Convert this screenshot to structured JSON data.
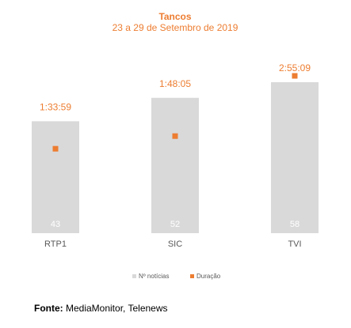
{
  "chart_data": {
    "type": "bar",
    "title": "Tancos",
    "subtitle": "23 a 29 de Setembro de 2019",
    "categories": [
      "RTP1",
      "SIC",
      "TVI"
    ],
    "series": [
      {
        "name": "Nº notícias",
        "kind": "bar",
        "values": [
          43,
          52,
          58
        ],
        "labels": [
          "43",
          "52",
          "58"
        ],
        "color": "#d9d9d9"
      },
      {
        "name": "Duração",
        "kind": "marker",
        "values": [
          "1:33:59",
          "1:48:05",
          "2:55:09"
        ],
        "labels": [
          "1:33:59",
          "1:48:05",
          "2:55:09"
        ],
        "color": "#ed7d31"
      }
    ],
    "legend_position": "bottom",
    "grid": false
  },
  "colors": {
    "accent": "#ed7d31",
    "bar": "#d9d9d9",
    "bar_label": "#ffffff",
    "axis_label": "#595959"
  },
  "footer": {
    "source_label": "Fonte:",
    "source_text": " MediaMonitor, Telenews"
  }
}
